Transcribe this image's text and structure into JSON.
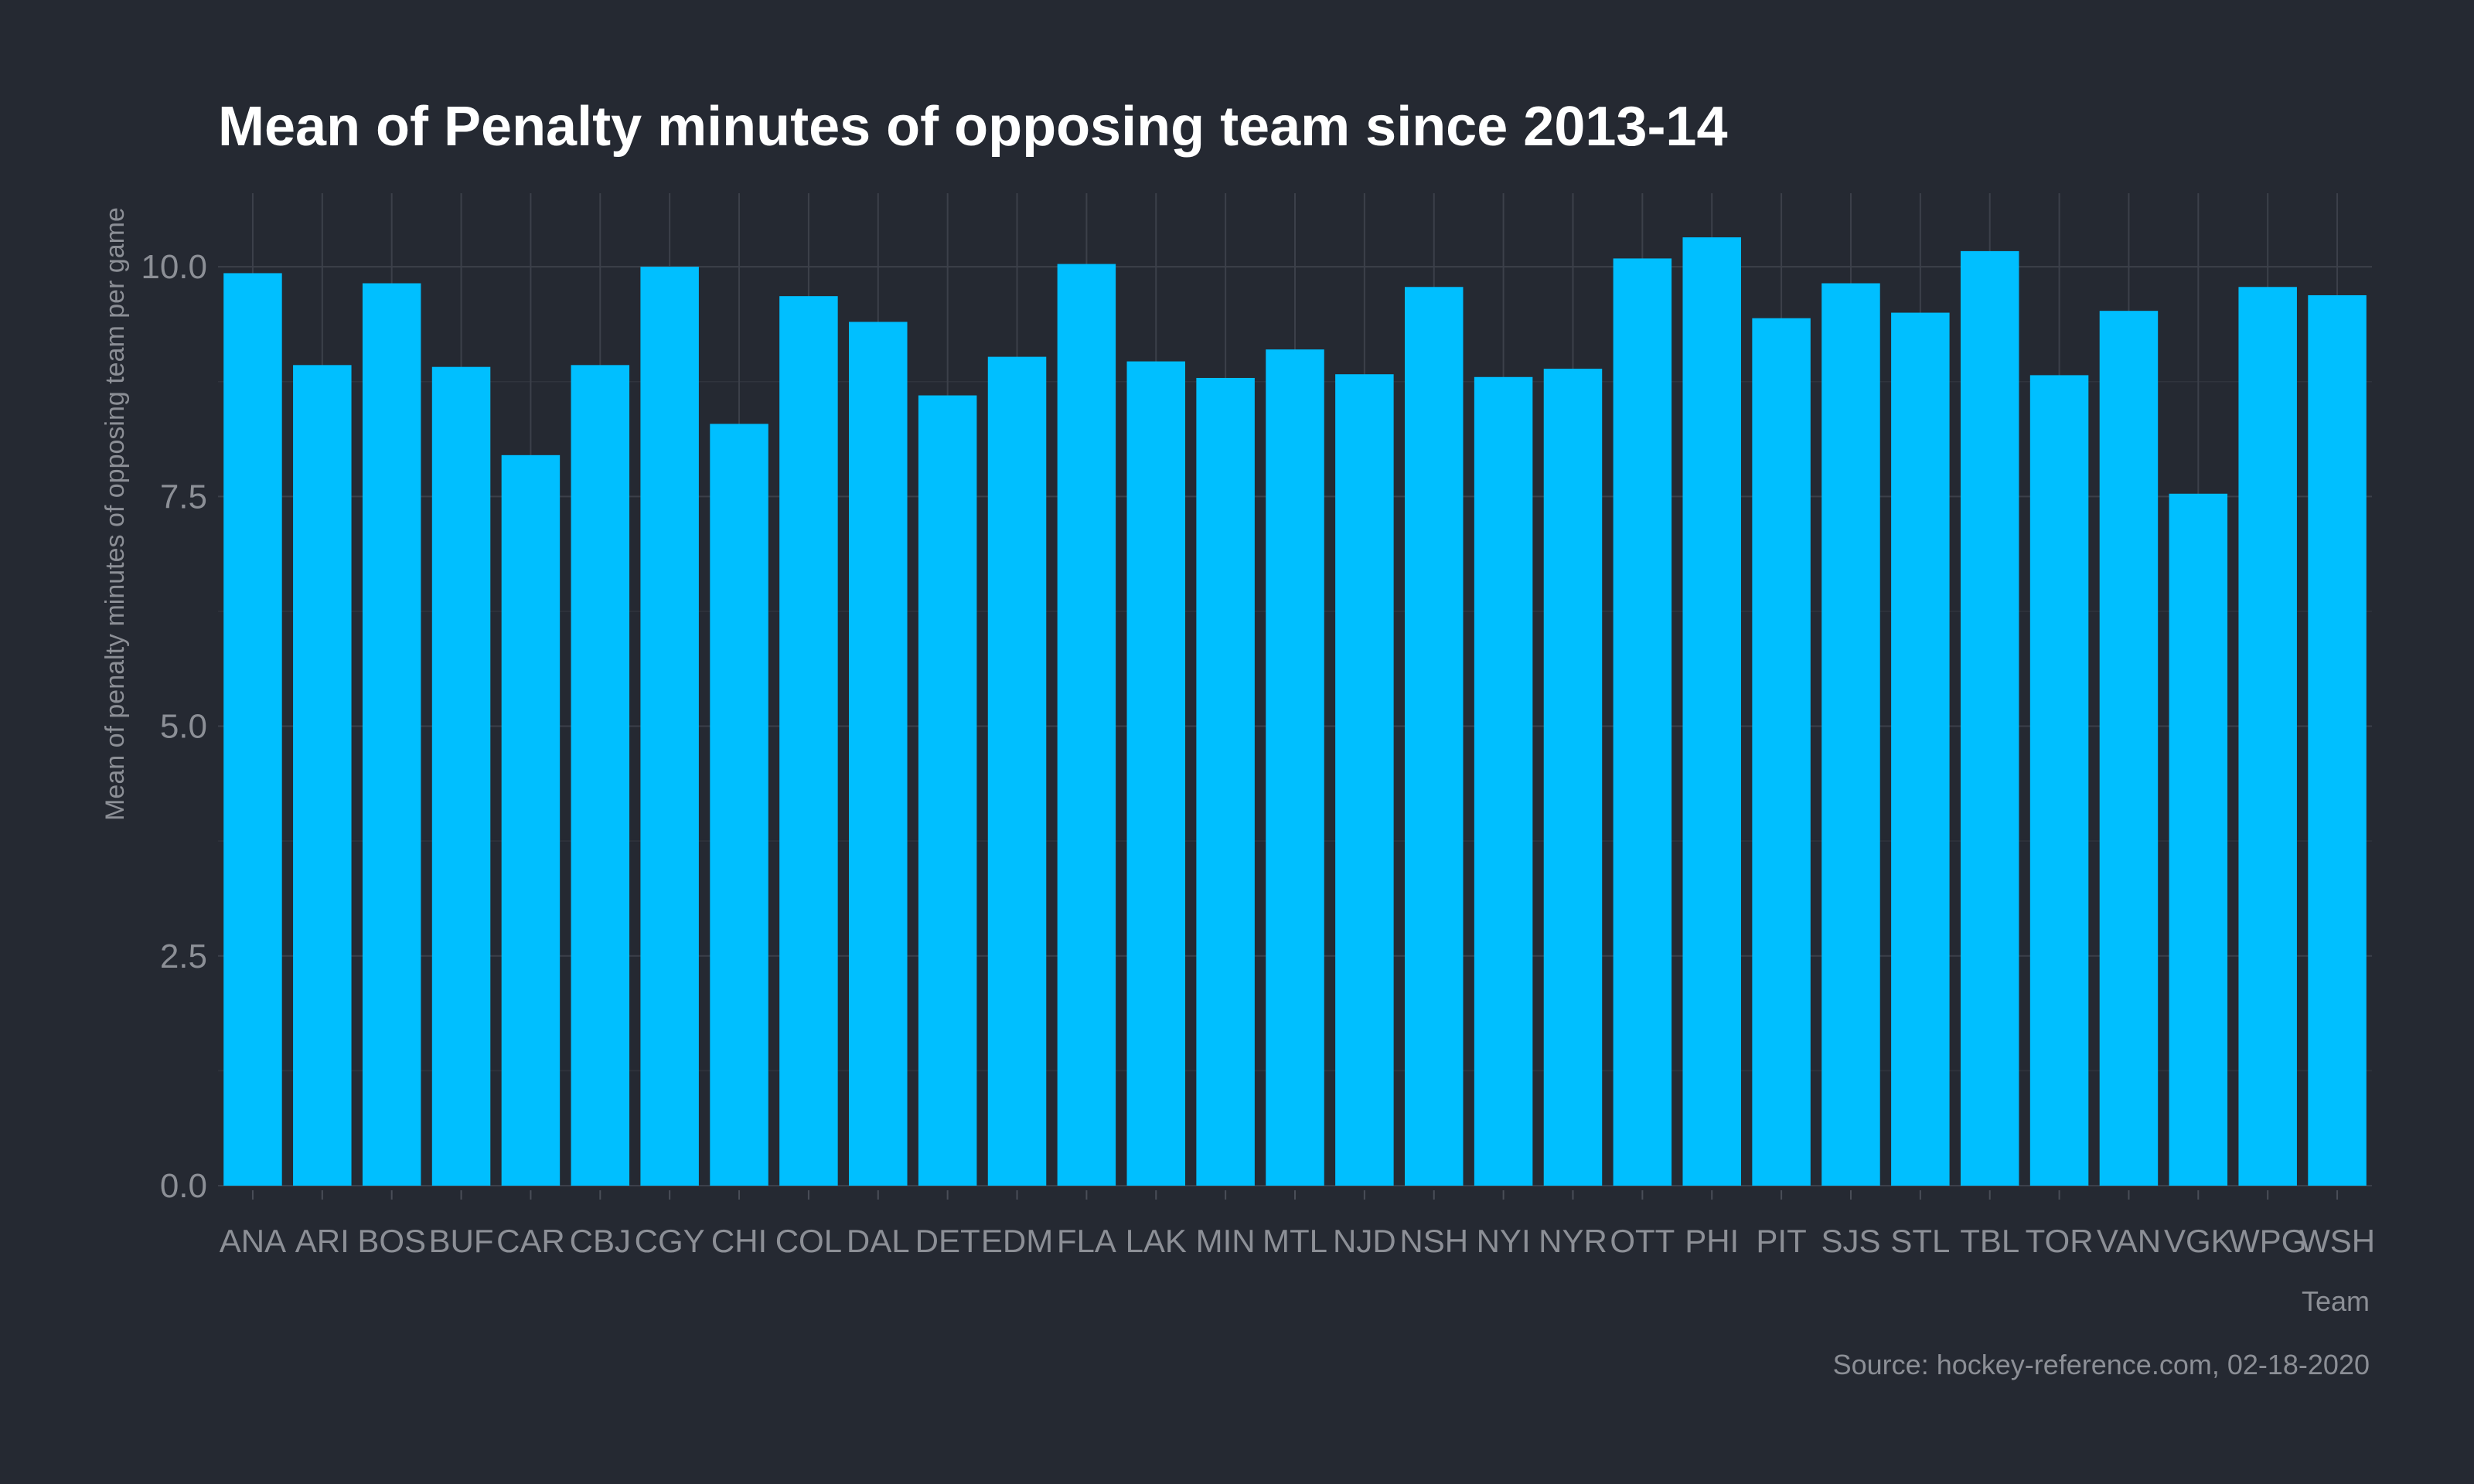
{
  "chart_data": {
    "type": "bar",
    "title": "Mean of Penalty minutes of opposing team since 2013-14",
    "xlabel": "Team",
    "ylabel": "Mean of penalty minutes of opposing team per game",
    "caption": "Source: hockey-reference.com, 02-18-2020",
    "categories": [
      "ANA",
      "ARI",
      "BOS",
      "BUF",
      "CAR",
      "CBJ",
      "CGY",
      "CHI",
      "COL",
      "DAL",
      "DET",
      "EDM",
      "FLA",
      "LAK",
      "MIN",
      "MTL",
      "NJD",
      "NSH",
      "NYI",
      "NYR",
      "OTT",
      "PHI",
      "PIT",
      "SJS",
      "STL",
      "TBL",
      "TOR",
      "VAN",
      "VGK",
      "WPG",
      "WSH"
    ],
    "values": [
      9.93,
      8.93,
      9.82,
      8.91,
      7.95,
      8.93,
      10.0,
      8.29,
      9.68,
      9.4,
      8.6,
      9.02,
      10.03,
      8.97,
      8.79,
      9.1,
      8.83,
      9.78,
      8.8,
      8.89,
      10.09,
      10.32,
      9.44,
      9.82,
      9.5,
      10.17,
      8.82,
      9.52,
      7.53,
      9.78,
      9.69
    ],
    "yticks": [
      "0.0",
      "2.5",
      "5.0",
      "7.5",
      "10.0"
    ],
    "ytick_values": [
      0,
      2.5,
      5.0,
      7.5,
      10.0
    ],
    "ylim": [
      0,
      10.8
    ],
    "bar_color": "#00bfff",
    "background": "#252932",
    "grid": true,
    "legend": "none"
  }
}
